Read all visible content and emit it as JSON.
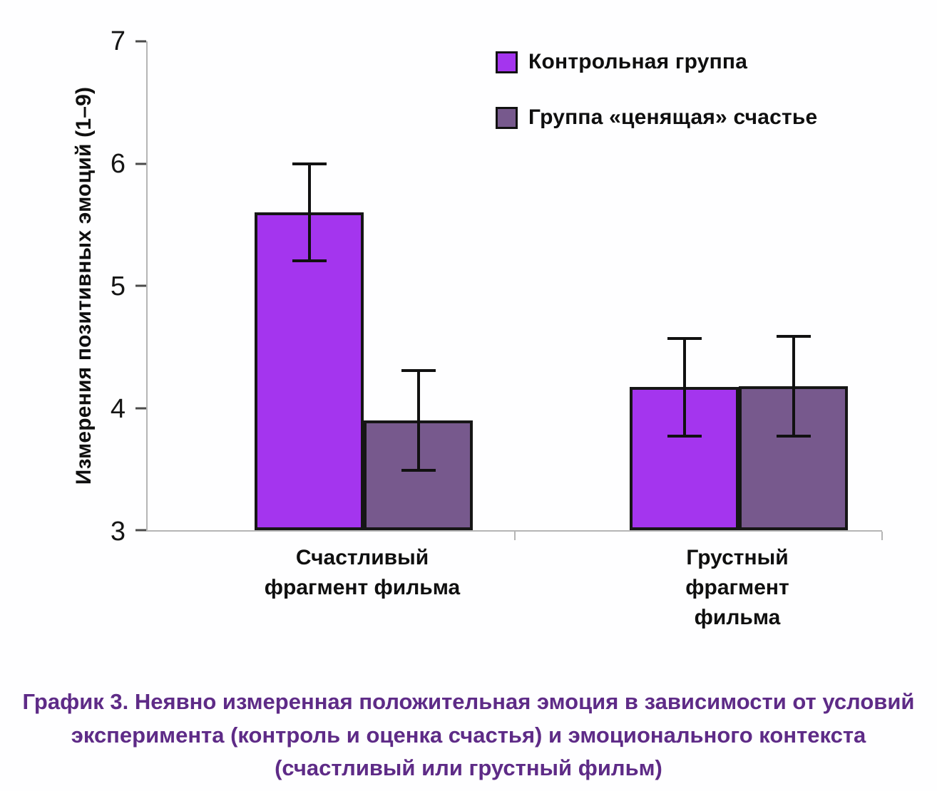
{
  "colors": {
    "control_bar": "#a435ee",
    "valuing_bar": "#77598d",
    "bar_border": "#161616",
    "error_bar": "#111111",
    "axis_line": "#b5b5b5",
    "caption_text": "#5e2b87",
    "background": "#fefeff"
  },
  "chart_data": {
    "type": "bar",
    "title": "",
    "ylabel": "Измерения позитивных эмоций (1–9)",
    "xlabel": "",
    "ylim": [
      3,
      7
    ],
    "yticks": [
      3,
      4,
      5,
      6,
      7
    ],
    "grid": false,
    "legend_position": "top-right",
    "categories": [
      "Счастливый\nфрагмент фильма",
      "Грустный фрагмент\nфильма"
    ],
    "series": [
      {
        "name": "Контрольная группа",
        "color": "#a435ee",
        "values": [
          5.6,
          4.17
        ],
        "errors": [
          0.41,
          0.41
        ]
      },
      {
        "name": "Группа «ценящая» счастье",
        "color": "#77598d",
        "values": [
          3.9,
          4.18
        ],
        "errors": [
          0.42,
          0.42
        ]
      }
    ]
  },
  "caption": "График 3. Неявно измеренная положительная эмоция в зависимости от условий эксперимента (контроль и оценка счастья) и эмоционального контекста (счастливый или грустный фильм)"
}
